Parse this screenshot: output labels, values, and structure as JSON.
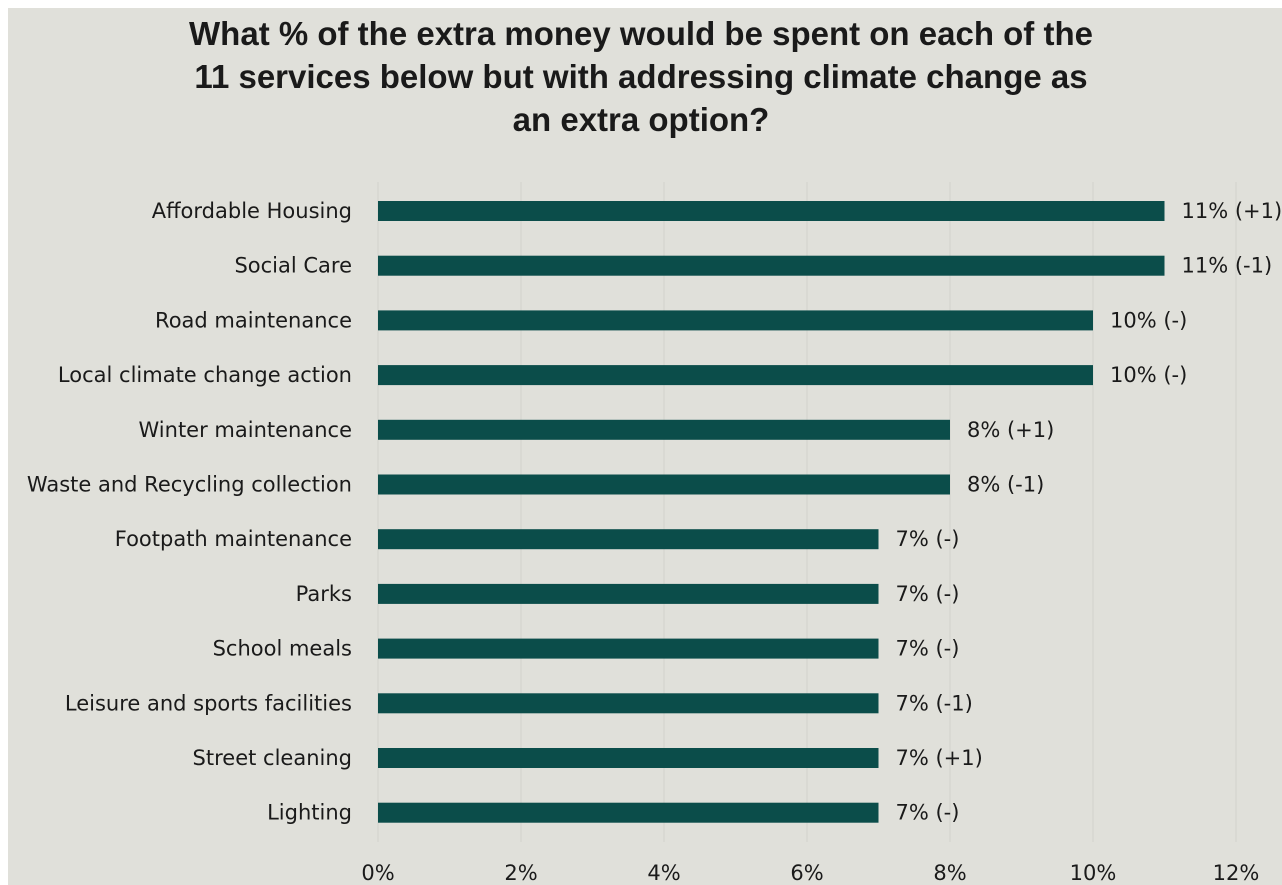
{
  "chart_data": {
    "type": "bar",
    "orientation": "horizontal",
    "title_lines": [
      "What % of the extra money would be spent on each of the",
      "11 services below but with addressing climate change as",
      "an extra option?"
    ],
    "categories": [
      "Affordable Housing",
      "Social Care",
      "Road maintenance",
      "Local climate change action",
      "Winter maintenance",
      "Waste and Recycling collection",
      "Footpath maintenance",
      "Parks",
      "School meals",
      "Leisure and sports facilities",
      "Street cleaning",
      "Lighting"
    ],
    "values": [
      11,
      11,
      10,
      10,
      8,
      8,
      7,
      7,
      7,
      7,
      7,
      7
    ],
    "data_labels": [
      "11% (+1)",
      "11% (-1)",
      "10% (-)",
      "10% (-)",
      "8% (+1)",
      "8% (-1)",
      "7% (-)",
      "7% (-)",
      "7% (-)",
      "7% (-1)",
      "7% (+1)",
      "7% (-)"
    ],
    "xlim": [
      0,
      12
    ],
    "x_ticks": [
      0,
      2,
      4,
      6,
      8,
      10,
      12
    ],
    "x_tick_labels": [
      "0%",
      "2%",
      "4%",
      "6%",
      "8%",
      "10%",
      "12%"
    ],
    "grid": "vertical",
    "legend": "none",
    "colors": {
      "bar": "#0b4d4a",
      "background": "#e0e0da",
      "grid": "#d2d2cc",
      "text": "#1a1a1a"
    }
  }
}
